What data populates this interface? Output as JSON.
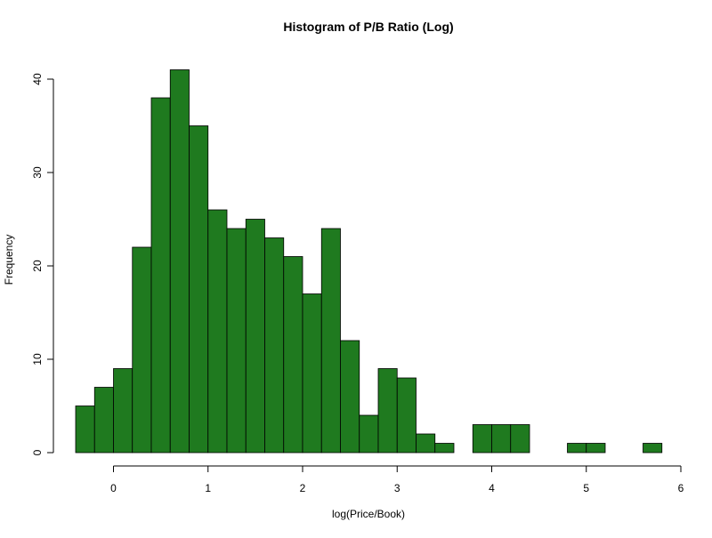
{
  "chart_data": {
    "type": "bar",
    "title": "Histogram of P/B Ratio (Log)",
    "xlabel": "log(Price/Book)",
    "ylabel": "Frequency",
    "bin_width": 0.2,
    "bins_start": [
      -0.4,
      -0.2,
      0.0,
      0.2,
      0.4,
      0.6,
      0.8,
      1.0,
      1.2,
      1.4,
      1.6,
      1.8,
      2.0,
      2.2,
      2.4,
      2.6,
      2.8,
      3.0,
      3.2,
      3.4,
      3.6,
      3.8,
      4.0,
      4.2,
      4.4,
      4.6,
      4.8,
      5.0,
      5.2,
      5.4,
      5.6
    ],
    "values": [
      5,
      7,
      9,
      22,
      38,
      41,
      35,
      26,
      24,
      25,
      23,
      21,
      17,
      24,
      12,
      4,
      9,
      8,
      2,
      1,
      0,
      3,
      3,
      3,
      0,
      0,
      1,
      1,
      0,
      0,
      1
    ],
    "xlim": [
      -0.4,
      5.8
    ],
    "ylim": [
      0,
      41
    ],
    "xticks": [
      0,
      1,
      2,
      3,
      4,
      5,
      6
    ],
    "yticks": [
      0,
      10,
      20,
      30,
      40
    ],
    "bar_color": "#1f7a1f",
    "edge_color": "#000000",
    "grid": false
  }
}
